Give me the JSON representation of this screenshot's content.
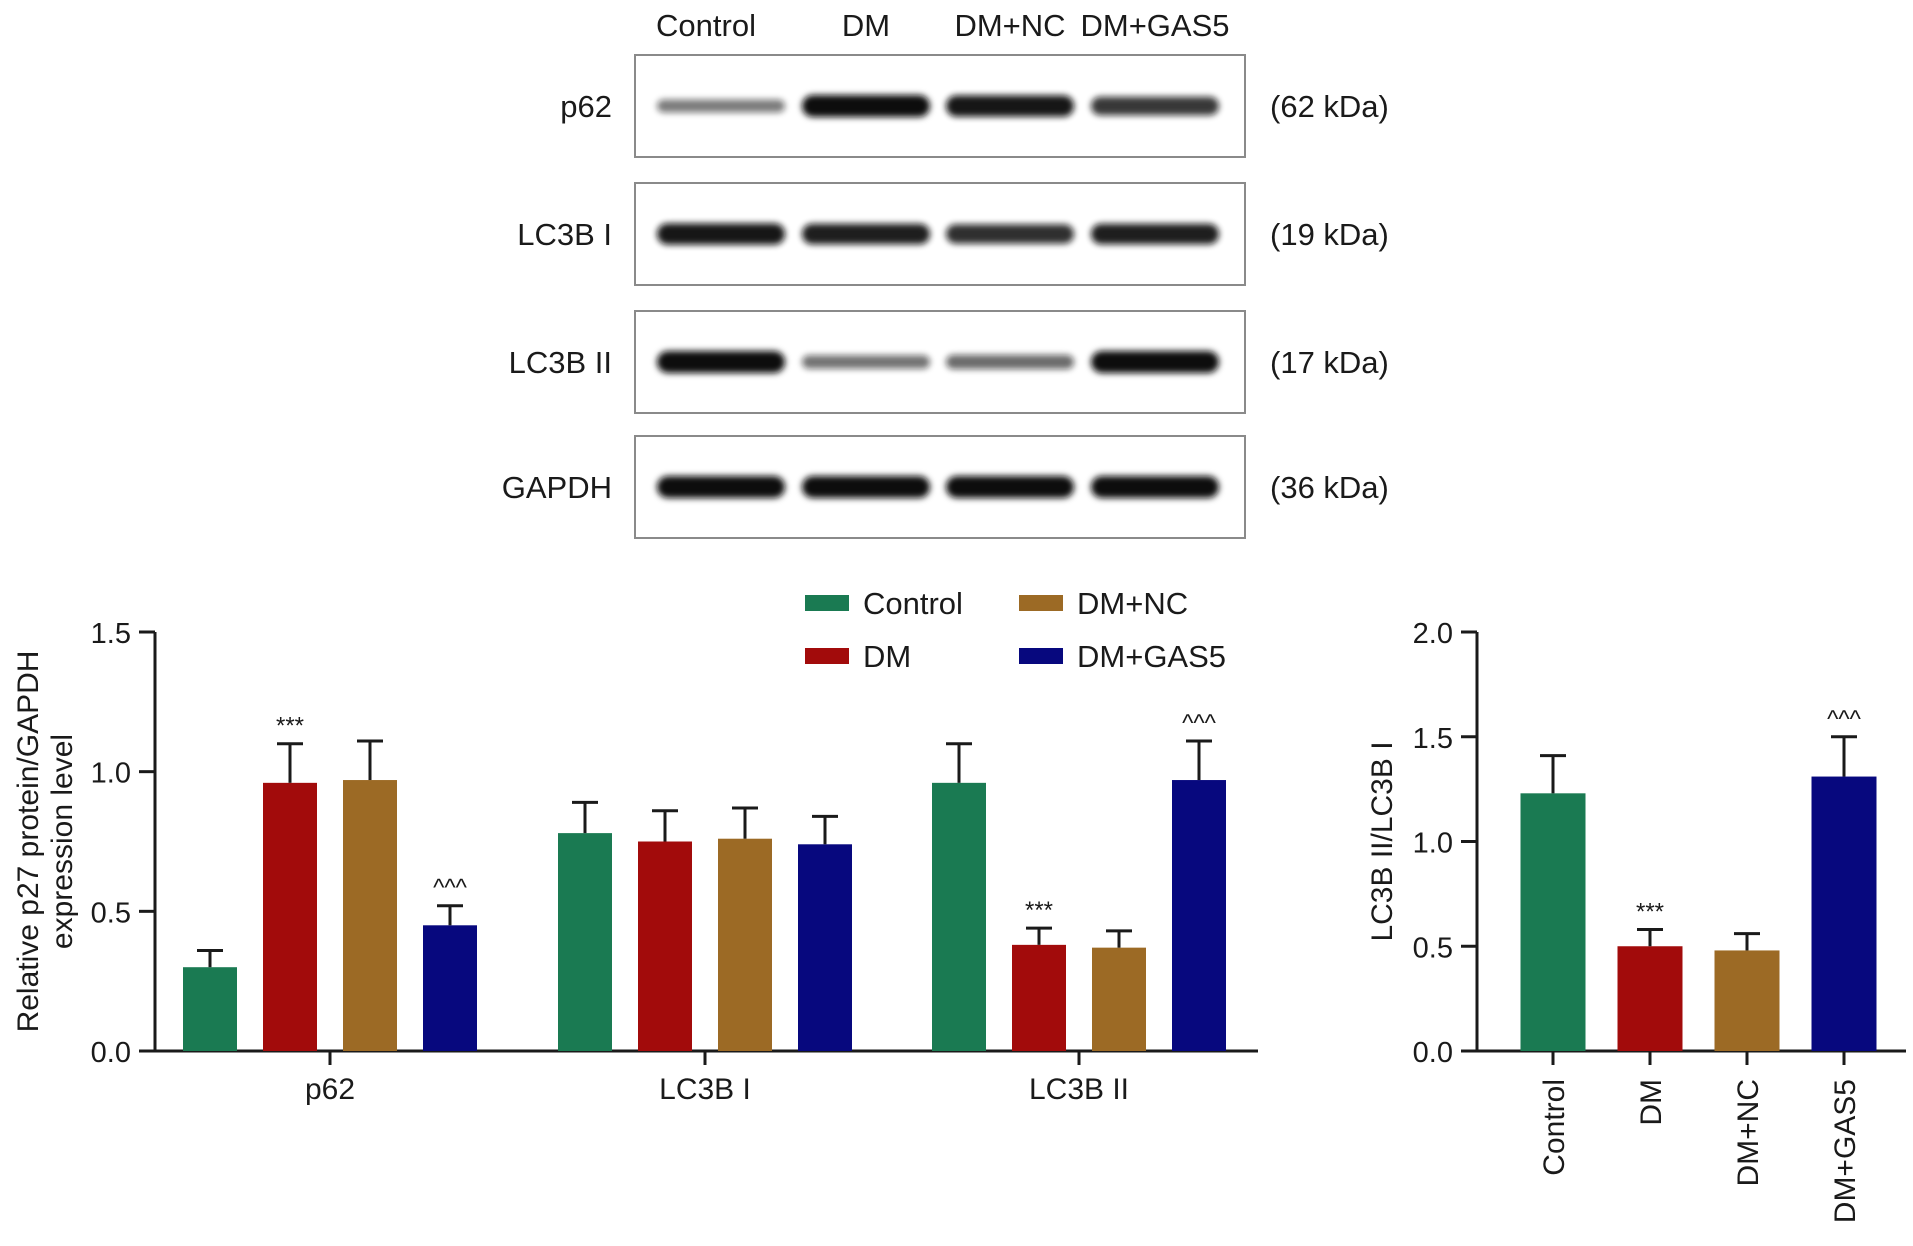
{
  "western_blot": {
    "lanes": [
      "Control",
      "DM",
      "DM+NC",
      "DM+GAS5"
    ],
    "rows": [
      {
        "protein": "p62",
        "size": "(62 kDa)",
        "band_intensity": [
          0.35,
          1.0,
          0.95,
          0.75
        ]
      },
      {
        "protein": "LC3B I",
        "size": "(19 kDa)",
        "band_intensity": [
          0.95,
          0.9,
          0.8,
          0.9
        ]
      },
      {
        "protein": "LC3B II",
        "size": "(17 kDa)",
        "band_intensity": [
          1.0,
          0.4,
          0.45,
          1.0
        ]
      },
      {
        "protein": "GAPDH",
        "size": "(36 kDa)",
        "band_intensity": [
          1.0,
          1.0,
          1.0,
          1.0
        ]
      }
    ]
  },
  "legend": [
    "Control",
    "DM",
    "DM+NC",
    "DM+GAS5"
  ],
  "colors": {
    "Control": "#1a7a52",
    "DM": "#a20b0b",
    "DM+NC": "#9c6a25",
    "DM+GAS5": "#07087e",
    "axis": "#1a1a1a",
    "band": "#111111"
  },
  "chart_data": [
    {
      "type": "bar",
      "ylabel_lines": [
        "Relative p27 protein/GAPDH",
        "expression level"
      ],
      "ylim": [
        0,
        1.5
      ],
      "yticks": [
        "0.0",
        "0.5",
        "1.0",
        "1.5"
      ],
      "categories": [
        "p62",
        "LC3B I",
        "LC3B II"
      ],
      "series": [
        {
          "name": "Control",
          "values": [
            0.3,
            0.78,
            0.96
          ],
          "errors": [
            0.06,
            0.11,
            0.14
          ],
          "annotations": [
            "",
            "",
            ""
          ]
        },
        {
          "name": "DM",
          "values": [
            0.96,
            0.75,
            0.38
          ],
          "errors": [
            0.14,
            0.11,
            0.06
          ],
          "annotations": [
            "***",
            "",
            "***"
          ]
        },
        {
          "name": "DM+NC",
          "values": [
            0.97,
            0.76,
            0.37
          ],
          "errors": [
            0.14,
            0.11,
            0.06
          ],
          "annotations": [
            "",
            "",
            ""
          ]
        },
        {
          "name": "DM+GAS5",
          "values": [
            0.45,
            0.74,
            0.97
          ],
          "errors": [
            0.07,
            0.1,
            0.14
          ],
          "annotations": [
            "^^^",
            "",
            "^^^"
          ]
        }
      ]
    },
    {
      "type": "bar",
      "ylabel": "LC3B II/LC3B I",
      "ylim": [
        0,
        2.0
      ],
      "yticks": [
        "0.0",
        "0.5",
        "1.0",
        "1.5",
        "2.0"
      ],
      "categories": [
        "Control",
        "DM",
        "DM+NC",
        "DM+GAS5"
      ],
      "values": [
        1.23,
        0.5,
        0.48,
        1.31
      ],
      "errors": [
        0.18,
        0.08,
        0.08,
        0.19
      ],
      "annotations": [
        "",
        "***",
        "",
        "^^^"
      ]
    }
  ]
}
